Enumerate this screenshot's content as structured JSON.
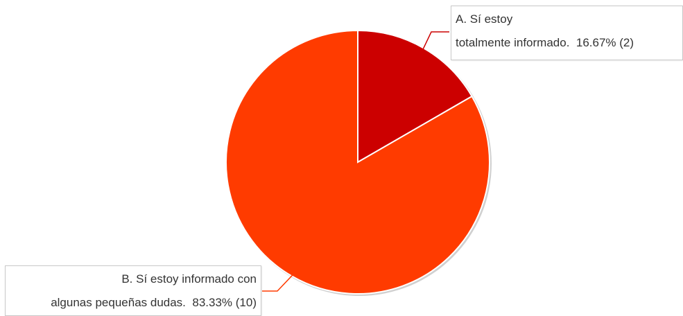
{
  "chart_data": {
    "type": "pie",
    "title": "",
    "slices": [
      {
        "label_line1": "A. Sí estoy",
        "label_line2": "totalmente informado.",
        "percent_text": "16.67% (2)",
        "value": 2,
        "percent": 16.67,
        "color": "#cc0000"
      },
      {
        "label_line1": "B. Sí estoy informado con",
        "label_line2": "algunas pequeñas dudas.",
        "percent_text": "83.33% (10)",
        "value": 10,
        "percent": 83.33,
        "color": "#ff3b00"
      }
    ]
  }
}
